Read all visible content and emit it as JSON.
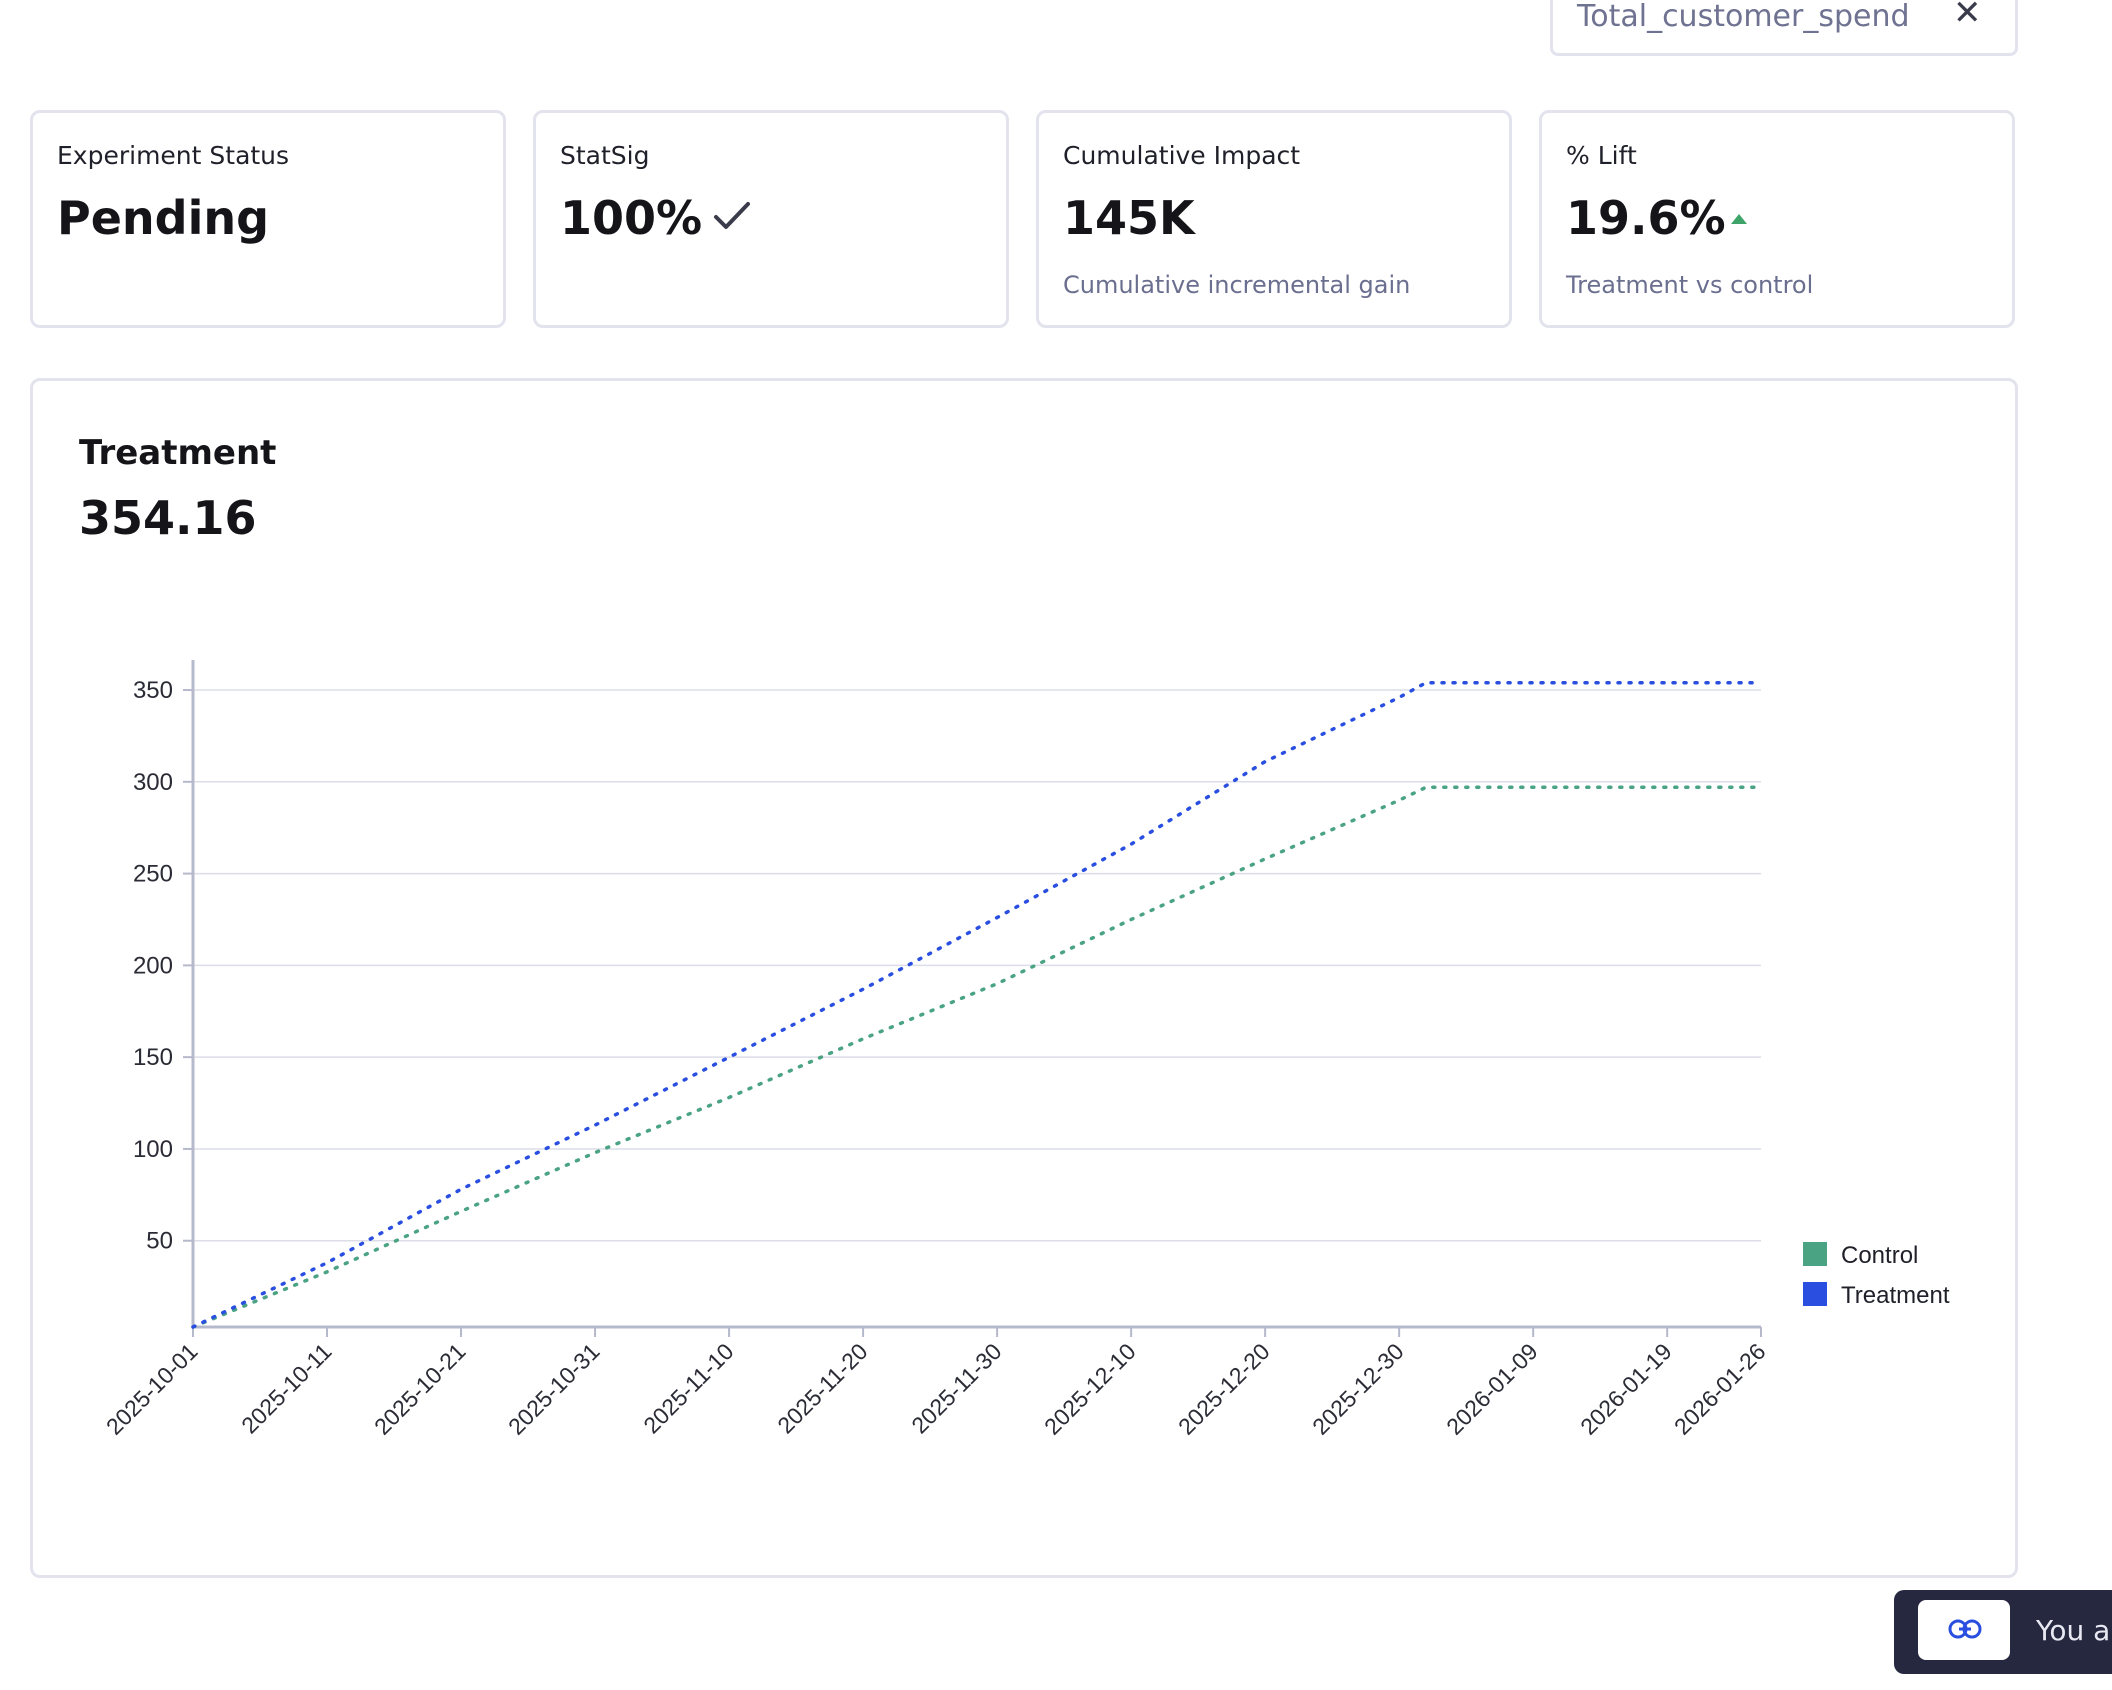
{
  "metric_selector": {
    "label": "Total_customer_spend"
  },
  "cards": [
    {
      "title": "Experiment Status",
      "value": "Pending",
      "sub": ""
    },
    {
      "title": "StatSig",
      "value": "100%",
      "sub": "",
      "icon": "check-icon"
    },
    {
      "title": "Cumulative Impact",
      "value": "145K",
      "sub": "Cumulative incremental gain"
    },
    {
      "title": "% Lift",
      "value": "19.6%",
      "sub": "Treatment vs control",
      "icon": "up-arrow-icon"
    }
  ],
  "panel": {
    "title": "Treatment",
    "value": "354.16"
  },
  "chart_data": {
    "type": "line",
    "x_type": "date",
    "x_ticks": [
      "2025-10-01",
      "2025-10-11",
      "2025-10-21",
      "2025-10-31",
      "2025-11-10",
      "2025-11-20",
      "2025-11-30",
      "2025-12-10",
      "2025-12-20",
      "2025-12-30",
      "2026-01-09",
      "2026-01-19",
      "2026-01-26"
    ],
    "y_ticks": [
      50,
      100,
      150,
      200,
      250,
      300,
      350
    ],
    "ylim": [
      3,
      362
    ],
    "xlim": [
      "2025-10-01",
      "2026-01-26"
    ],
    "grid": true,
    "legend_position": "right",
    "series": [
      {
        "name": "Control",
        "color": "#4aa383",
        "points": [
          [
            "2025-10-01",
            3
          ],
          [
            "2025-10-11",
            33
          ],
          [
            "2025-10-21",
            66
          ],
          [
            "2025-10-31",
            98
          ],
          [
            "2025-11-10",
            128
          ],
          [
            "2025-11-20",
            160
          ],
          [
            "2025-11-30",
            190
          ],
          [
            "2025-12-10",
            225
          ],
          [
            "2025-12-20",
            258
          ],
          [
            "2025-12-30",
            290
          ],
          [
            "2026-01-01",
            297
          ],
          [
            "2026-01-26",
            297
          ]
        ]
      },
      {
        "name": "Treatment",
        "color": "#2a4fe0",
        "points": [
          [
            "2025-10-01",
            3
          ],
          [
            "2025-10-11",
            38
          ],
          [
            "2025-10-21",
            78
          ],
          [
            "2025-10-31",
            113
          ],
          [
            "2025-11-10",
            150
          ],
          [
            "2025-11-20",
            187
          ],
          [
            "2025-11-30",
            226
          ],
          [
            "2025-12-10",
            266
          ],
          [
            "2025-12-20",
            311
          ],
          [
            "2025-12-30",
            346
          ],
          [
            "2026-01-01",
            354
          ],
          [
            "2026-01-26",
            354
          ]
        ]
      }
    ]
  },
  "toast": {
    "text": "You ar"
  }
}
